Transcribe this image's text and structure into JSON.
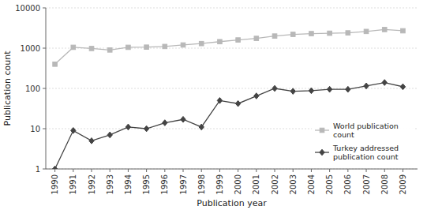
{
  "chart_data": {
    "type": "line",
    "x": [
      1990,
      1991,
      1992,
      1993,
      1994,
      1995,
      1996,
      1997,
      1998,
      1999,
      2000,
      2001,
      2002,
      2003,
      2004,
      2005,
      2006,
      2007,
      2008,
      2009
    ],
    "series": [
      {
        "name": "World publication\ncount",
        "color": "#b8b8b8",
        "marker": "square",
        "values": [
          400,
          1050,
          980,
          900,
          1050,
          1060,
          1100,
          1200,
          1300,
          1450,
          1600,
          1750,
          2000,
          2200,
          2300,
          2350,
          2400,
          2600,
          2900,
          2700
        ]
      },
      {
        "name": "Turkey addressed\npublication count",
        "color": "#444444",
        "marker": "diamond",
        "values": [
          1,
          9,
          5,
          7,
          11,
          10,
          14,
          17,
          11,
          50,
          42,
          65,
          100,
          85,
          88,
          95,
          95,
          115,
          140,
          110
        ]
      }
    ],
    "x_label": "Publication year",
    "y_label": "Publication count",
    "xlim": [
      1989.5,
      2009.8
    ],
    "xticks": [
      1990,
      1991,
      1992,
      1993,
      1994,
      1995,
      1996,
      1997,
      1998,
      1999,
      2000,
      2001,
      2002,
      2003,
      2004,
      2005,
      2006,
      2007,
      2008,
      2009
    ],
    "ylim": [
      1,
      10000
    ],
    "yticks": [
      1,
      10,
      100,
      1000,
      10000
    ],
    "log": "y",
    "grid": true,
    "legend": "lower right"
  }
}
